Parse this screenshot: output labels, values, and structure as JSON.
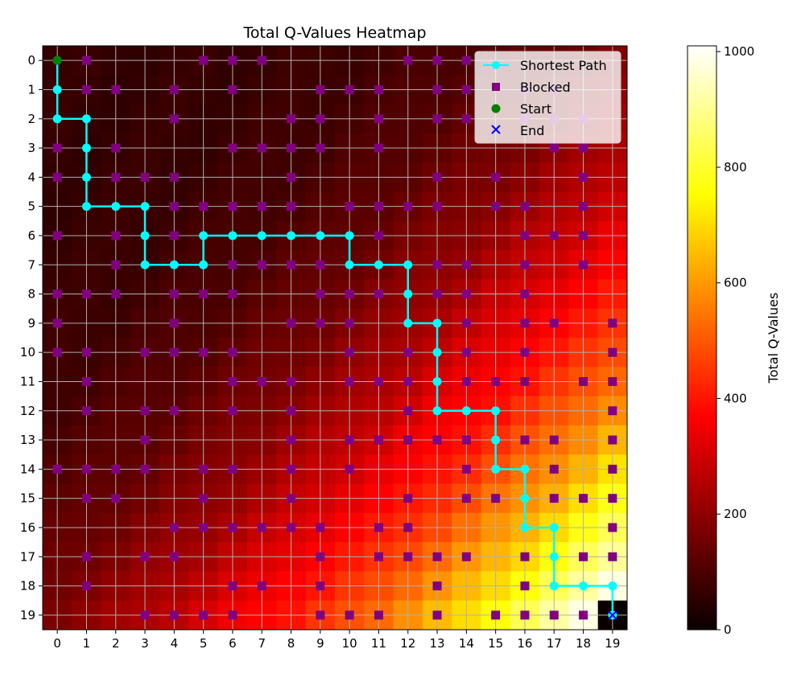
{
  "chart_data": {
    "type": "heatmap",
    "title": "Total Q-Values Heatmap",
    "xlabel": "",
    "ylabel": "",
    "x_ticks": [
      "0",
      "1",
      "2",
      "3",
      "4",
      "5",
      "6",
      "7",
      "8",
      "9",
      "10",
      "11",
      "12",
      "13",
      "14",
      "15",
      "16",
      "17",
      "18",
      "19"
    ],
    "y_ticks": [
      "0",
      "1",
      "2",
      "3",
      "4",
      "5",
      "6",
      "7",
      "8",
      "9",
      "10",
      "11",
      "12",
      "13",
      "14",
      "15",
      "16",
      "17",
      "18",
      "19"
    ],
    "grid_size": 20,
    "grid": true,
    "y_axis_inverted": true,
    "colormap": "hot",
    "value_range": [
      0,
      1010
    ],
    "q_value_model": "approximately increasing with (row + column), max near bottom-right; cell (19,19) = 0",
    "colorbar": {
      "label": "Total Q-Values",
      "ticks": [
        "0",
        "200",
        "400",
        "600",
        "800",
        "1000"
      ],
      "tick_values": [
        0,
        200,
        400,
        600,
        800,
        1000
      ]
    },
    "legend": {
      "placement": "top-right",
      "entries": [
        {
          "label": "Shortest Path",
          "color": "#00ffff",
          "marker": "line-circle"
        },
        {
          "label": "Blocked",
          "color": "#800080",
          "marker": "square"
        },
        {
          "label": "Start",
          "color": "#008000",
          "marker": "circle"
        },
        {
          "label": "End",
          "color": "#0000ff",
          "marker": "x"
        }
      ]
    },
    "series": [
      {
        "name": "Shortest Path",
        "color": "#00ffff",
        "points": [
          [
            0,
            0
          ],
          [
            0,
            1
          ],
          [
            0,
            2
          ],
          [
            1,
            2
          ],
          [
            1,
            3
          ],
          [
            1,
            4
          ],
          [
            1,
            5
          ],
          [
            2,
            5
          ],
          [
            3,
            5
          ],
          [
            3,
            6
          ],
          [
            3,
            7
          ],
          [
            4,
            7
          ],
          [
            5,
            7
          ],
          [
            5,
            6
          ],
          [
            6,
            6
          ],
          [
            7,
            6
          ],
          [
            8,
            6
          ],
          [
            9,
            6
          ],
          [
            10,
            6
          ],
          [
            10,
            7
          ],
          [
            11,
            7
          ],
          [
            12,
            7
          ],
          [
            12,
            8
          ],
          [
            12,
            9
          ],
          [
            13,
            9
          ],
          [
            13,
            10
          ],
          [
            13,
            11
          ],
          [
            13,
            12
          ],
          [
            14,
            12
          ],
          [
            15,
            12
          ],
          [
            15,
            13
          ],
          [
            15,
            14
          ],
          [
            16,
            14
          ],
          [
            16,
            15
          ],
          [
            16,
            16
          ],
          [
            17,
            16
          ],
          [
            17,
            17
          ],
          [
            17,
            18
          ],
          [
            18,
            18
          ],
          [
            19,
            18
          ],
          [
            19,
            19
          ]
        ]
      },
      {
        "name": "Blocked",
        "color": "#800080",
        "points": [
          [
            1,
            0
          ],
          [
            5,
            0
          ],
          [
            6,
            0
          ],
          [
            7,
            0
          ],
          [
            12,
            0
          ],
          [
            13,
            0
          ],
          [
            14,
            0
          ],
          [
            1,
            1
          ],
          [
            2,
            1
          ],
          [
            4,
            1
          ],
          [
            6,
            1
          ],
          [
            9,
            1
          ],
          [
            10,
            1
          ],
          [
            11,
            1
          ],
          [
            13,
            1
          ],
          [
            14,
            1
          ],
          [
            16,
            1
          ],
          [
            17,
            1
          ],
          [
            4,
            2
          ],
          [
            8,
            2
          ],
          [
            9,
            2
          ],
          [
            11,
            2
          ],
          [
            13,
            2
          ],
          [
            14,
            2
          ],
          [
            16,
            2
          ],
          [
            17,
            2
          ],
          [
            18,
            2
          ],
          [
            0,
            3
          ],
          [
            2,
            3
          ],
          [
            6,
            3
          ],
          [
            7,
            3
          ],
          [
            8,
            3
          ],
          [
            9,
            3
          ],
          [
            11,
            3
          ],
          [
            17,
            3
          ],
          [
            18,
            3
          ],
          [
            0,
            4
          ],
          [
            2,
            4
          ],
          [
            3,
            4
          ],
          [
            4,
            4
          ],
          [
            8,
            4
          ],
          [
            13,
            4
          ],
          [
            15,
            4
          ],
          [
            18,
            4
          ],
          [
            4,
            5
          ],
          [
            5,
            5
          ],
          [
            6,
            5
          ],
          [
            7,
            5
          ],
          [
            8,
            5
          ],
          [
            10,
            5
          ],
          [
            11,
            5
          ],
          [
            12,
            5
          ],
          [
            13,
            5
          ],
          [
            15,
            5
          ],
          [
            16,
            5
          ],
          [
            18,
            5
          ],
          [
            0,
            6
          ],
          [
            2,
            6
          ],
          [
            4,
            6
          ],
          [
            11,
            6
          ],
          [
            16,
            6
          ],
          [
            17,
            6
          ],
          [
            18,
            6
          ],
          [
            2,
            7
          ],
          [
            6,
            7
          ],
          [
            7,
            7
          ],
          [
            8,
            7
          ],
          [
            9,
            7
          ],
          [
            13,
            7
          ],
          [
            14,
            7
          ],
          [
            16,
            7
          ],
          [
            18,
            7
          ],
          [
            0,
            8
          ],
          [
            1,
            8
          ],
          [
            2,
            8
          ],
          [
            4,
            8
          ],
          [
            5,
            8
          ],
          [
            6,
            8
          ],
          [
            9,
            8
          ],
          [
            10,
            8
          ],
          [
            11,
            8
          ],
          [
            13,
            8
          ],
          [
            14,
            8
          ],
          [
            16,
            8
          ],
          [
            0,
            9
          ],
          [
            4,
            9
          ],
          [
            8,
            9
          ],
          [
            9,
            9
          ],
          [
            10,
            9
          ],
          [
            14,
            9
          ],
          [
            16,
            9
          ],
          [
            17,
            9
          ],
          [
            19,
            9
          ],
          [
            0,
            10
          ],
          [
            1,
            10
          ],
          [
            3,
            10
          ],
          [
            4,
            10
          ],
          [
            5,
            10
          ],
          [
            6,
            10
          ],
          [
            10,
            10
          ],
          [
            12,
            10
          ],
          [
            14,
            10
          ],
          [
            16,
            10
          ],
          [
            19,
            10
          ],
          [
            1,
            11
          ],
          [
            6,
            11
          ],
          [
            7,
            11
          ],
          [
            8,
            11
          ],
          [
            10,
            11
          ],
          [
            11,
            11
          ],
          [
            12,
            11
          ],
          [
            14,
            11
          ],
          [
            15,
            11
          ],
          [
            16,
            11
          ],
          [
            18,
            11
          ],
          [
            19,
            11
          ],
          [
            1,
            12
          ],
          [
            3,
            12
          ],
          [
            4,
            12
          ],
          [
            6,
            12
          ],
          [
            8,
            12
          ],
          [
            12,
            12
          ],
          [
            19,
            12
          ],
          [
            3,
            13
          ],
          [
            8,
            13
          ],
          [
            10,
            13
          ],
          [
            11,
            13
          ],
          [
            12,
            13
          ],
          [
            13,
            13
          ],
          [
            14,
            13
          ],
          [
            16,
            13
          ],
          [
            17,
            13
          ],
          [
            19,
            13
          ],
          [
            0,
            14
          ],
          [
            1,
            14
          ],
          [
            2,
            14
          ],
          [
            3,
            14
          ],
          [
            5,
            14
          ],
          [
            6,
            14
          ],
          [
            8,
            14
          ],
          [
            10,
            14
          ],
          [
            14,
            14
          ],
          [
            17,
            14
          ],
          [
            19,
            14
          ],
          [
            1,
            15
          ],
          [
            2,
            15
          ],
          [
            5,
            15
          ],
          [
            8,
            15
          ],
          [
            12,
            15
          ],
          [
            14,
            15
          ],
          [
            15,
            15
          ],
          [
            17,
            15
          ],
          [
            18,
            15
          ],
          [
            19,
            15
          ],
          [
            4,
            16
          ],
          [
            5,
            16
          ],
          [
            6,
            16
          ],
          [
            7,
            16
          ],
          [
            8,
            16
          ],
          [
            9,
            16
          ],
          [
            11,
            16
          ],
          [
            12,
            16
          ],
          [
            19,
            16
          ],
          [
            1,
            17
          ],
          [
            3,
            17
          ],
          [
            4,
            17
          ],
          [
            9,
            17
          ],
          [
            11,
            17
          ],
          [
            12,
            17
          ],
          [
            13,
            17
          ],
          [
            14,
            17
          ],
          [
            16,
            17
          ],
          [
            18,
            17
          ],
          [
            19,
            17
          ],
          [
            1,
            18
          ],
          [
            6,
            18
          ],
          [
            7,
            18
          ],
          [
            9,
            18
          ],
          [
            13,
            18
          ],
          [
            16,
            18
          ],
          [
            3,
            19
          ],
          [
            4,
            19
          ],
          [
            5,
            19
          ],
          [
            6,
            19
          ],
          [
            9,
            19
          ],
          [
            10,
            19
          ],
          [
            11,
            19
          ],
          [
            13,
            19
          ],
          [
            15,
            19
          ],
          [
            16,
            19
          ],
          [
            17,
            19
          ],
          [
            18,
            19
          ]
        ]
      },
      {
        "name": "Start",
        "color": "#008000",
        "points": [
          [
            0,
            0
          ]
        ]
      },
      {
        "name": "End",
        "color": "#0000ff",
        "points": [
          [
            19,
            19
          ]
        ]
      }
    ]
  }
}
